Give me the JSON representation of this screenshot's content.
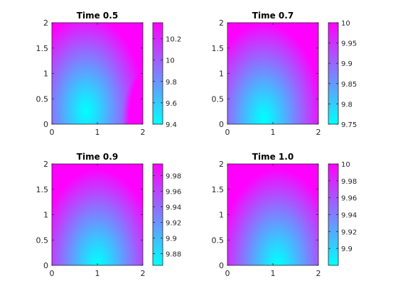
{
  "chart_data": [
    {
      "type": "heatmap",
      "title": "Time 0.5",
      "xlim": [
        0,
        2
      ],
      "ylim": [
        0,
        2
      ],
      "xticks": [
        "0",
        "1",
        "2"
      ],
      "yticks": [
        "0",
        "0.5",
        "1",
        "1.5",
        "2"
      ],
      "colormap": [
        "#00ffff",
        "#ff00ff"
      ],
      "clim": [
        9.4,
        10.35
      ],
      "colorbar_ticks": [
        {
          "value": 9.4,
          "label": "9.4"
        },
        {
          "value": 9.6,
          "label": "9.6"
        },
        {
          "value": 9.8,
          "label": "9.8"
        },
        {
          "value": 10.0,
          "label": "10"
        },
        {
          "value": 10.2,
          "label": "10.2"
        }
      ],
      "pattern": {
        "min_at": [
          0.75,
          0.25
        ],
        "corner_high": "top",
        "right_edge_boost": true
      }
    },
    {
      "type": "heatmap",
      "title": "Time 0.7",
      "xlim": [
        0,
        2
      ],
      "ylim": [
        0,
        2
      ],
      "xticks": [
        "0",
        "1",
        "2"
      ],
      "yticks": [
        "0",
        "0.5",
        "1",
        "1.5",
        "2"
      ],
      "colormap": [
        "#00ffff",
        "#ff00ff"
      ],
      "clim": [
        9.75,
        10.0
      ],
      "colorbar_ticks": [
        {
          "value": 9.75,
          "label": "9.75"
        },
        {
          "value": 9.8,
          "label": "9.8"
        },
        {
          "value": 9.85,
          "label": "9.85"
        },
        {
          "value": 9.9,
          "label": "9.9"
        },
        {
          "value": 9.95,
          "label": "9.95"
        },
        {
          "value": 10.0,
          "label": "10"
        }
      ],
      "pattern": {
        "min_at": [
          0.8,
          0.1
        ],
        "corner_high": "top",
        "right_edge_boost": false
      }
    },
    {
      "type": "heatmap",
      "title": "Time 0.9",
      "xlim": [
        0,
        2
      ],
      "ylim": [
        0,
        2
      ],
      "xticks": [
        "0",
        "1",
        "2"
      ],
      "yticks": [
        "0",
        "0.5",
        "1",
        "1.5",
        "2"
      ],
      "colormap": [
        "#00ffff",
        "#ff00ff"
      ],
      "clim": [
        9.865,
        9.995
      ],
      "colorbar_ticks": [
        {
          "value": 9.88,
          "label": "9.88"
        },
        {
          "value": 9.9,
          "label": "9.9"
        },
        {
          "value": 9.92,
          "label": "9.92"
        },
        {
          "value": 9.94,
          "label": "9.94"
        },
        {
          "value": 9.96,
          "label": "9.96"
        },
        {
          "value": 9.98,
          "label": "9.98"
        }
      ],
      "pattern": {
        "min_at": [
          1.0,
          0.0
        ],
        "corner_high": "top",
        "right_edge_boost": false
      }
    },
    {
      "type": "heatmap",
      "title": "Time 1.0",
      "xlim": [
        0,
        2
      ],
      "ylim": [
        0,
        2
      ],
      "xticks": [
        "0",
        "1",
        "2"
      ],
      "yticks": [
        "0",
        "0.5",
        "1",
        "1.5",
        "2"
      ],
      "colormap": [
        "#00ffff",
        "#ff00ff"
      ],
      "clim": [
        9.88,
        10.0
      ],
      "colorbar_ticks": [
        {
          "value": 9.9,
          "label": "9.9"
        },
        {
          "value": 9.92,
          "label": "9.92"
        },
        {
          "value": 9.94,
          "label": "9.94"
        },
        {
          "value": 9.96,
          "label": "9.96"
        },
        {
          "value": 9.98,
          "label": "9.98"
        },
        {
          "value": 10.0,
          "label": "10"
        }
      ],
      "pattern": {
        "min_at": [
          1.1,
          0.0
        ],
        "corner_high": "top",
        "right_edge_boost": false
      }
    }
  ]
}
